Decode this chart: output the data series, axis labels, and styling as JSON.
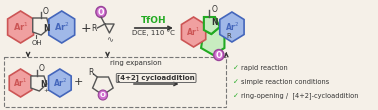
{
  "bg_color": "#f5f0e8",
  "arrow_color": "#333333",
  "tfoh_color": "#22aa22",
  "ar1_fill": "#f0a0a0",
  "ar1_edge": "#cc5555",
  "ar2_fill": "#a0b8e8",
  "ar2_edge": "#4466bb",
  "green_fill": "#c8ecc0",
  "green_edge": "#22aa22",
  "o_fill": "#d070d0",
  "o_edge": "#994499",
  "dashed_box_color": "#777777",
  "check_color": "#22aa22",
  "bullet_lines": [
    "rapid reaction",
    "simple reaction conditions",
    "ring-opening /  [4+2]-cycloaddition"
  ],
  "reagent_line1": "TfOH",
  "reagent_line2": "DCE, 110 °C",
  "ring_expansion_label": "ring expansion",
  "diels_alder_label": "[4+2] cycloaddition",
  "figsize": [
    3.78,
    1.1
  ],
  "dpi": 100
}
